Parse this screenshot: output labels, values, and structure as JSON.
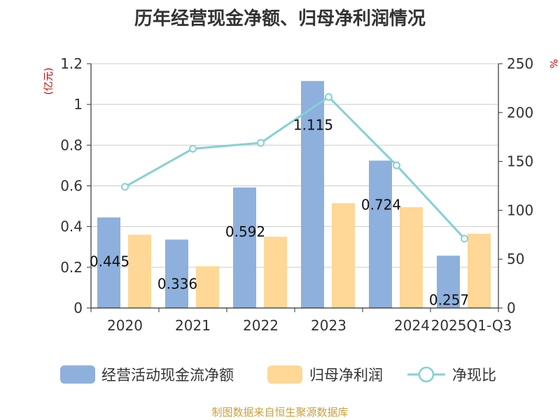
{
  "title": "历年经营现金净额、归母净利润情况",
  "source": "制图数据来自恒生聚源数据库",
  "colors": {
    "cash": "#8eb0dc",
    "profit": "#ffd796",
    "ratio": "#86d0d4",
    "axis": "#333333",
    "grid": "#cccccc",
    "unit": "#cc0000",
    "source": "#c8a03c"
  },
  "chart_data": {
    "type": "bar",
    "categories": [
      "2020",
      "2021",
      "2022",
      "2023",
      "2024",
      "2025Q1-Q3"
    ],
    "left_axis": {
      "unit": "(亿元)",
      "ylim": [
        0,
        1.2
      ],
      "ticks": [
        "0",
        "0.2",
        "0.4",
        "0.6",
        "0.8",
        "1",
        "1.2"
      ]
    },
    "right_axis": {
      "unit": "%",
      "ylim": [
        0,
        250
      ],
      "ticks": [
        "0",
        "50",
        "100",
        "150",
        "200",
        "250"
      ]
    },
    "series": [
      {
        "name": "经营活动现金流净额",
        "type": "bar",
        "axis": "left",
        "values": [
          0.445,
          0.336,
          0.592,
          1.115,
          0.724,
          0.257
        ],
        "labels": [
          "0.445",
          "0.336",
          "0.592",
          "1.115",
          "0.724",
          "0.257"
        ]
      },
      {
        "name": "归母净利润",
        "type": "bar",
        "axis": "left",
        "values": [
          0.36,
          0.205,
          0.35,
          0.515,
          0.495,
          0.365
        ]
      },
      {
        "name": "净现比",
        "type": "line",
        "axis": "right",
        "values": [
          124,
          163,
          169,
          216,
          146,
          71
        ]
      }
    ],
    "grid": true,
    "legend": "bottom"
  }
}
